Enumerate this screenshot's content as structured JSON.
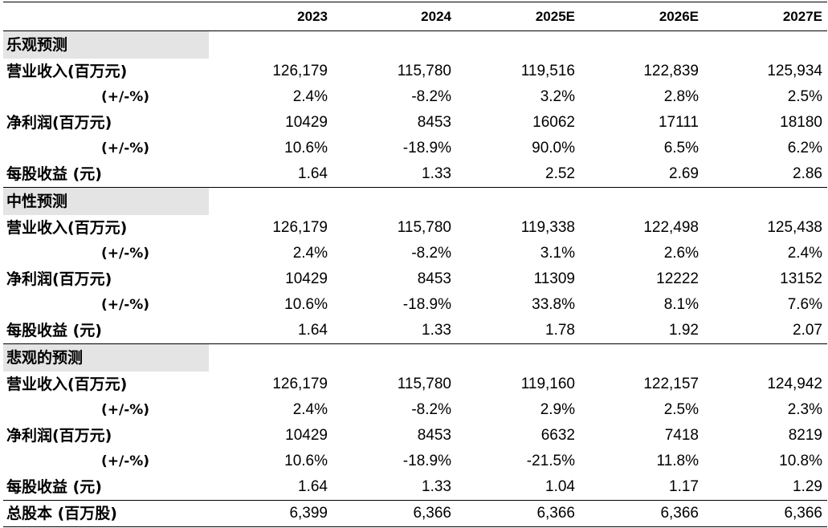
{
  "headers": [
    "",
    "2023",
    "2024",
    "2025E",
    "2026E",
    "2027E"
  ],
  "sections": [
    {
      "title": "乐观预测",
      "rows": [
        {
          "label": "营业收入(百万元)",
          "sub": false,
          "values": [
            "126,179",
            "115,780",
            "119,516",
            "122,839",
            "125,934"
          ]
        },
        {
          "label": "(+/-%)",
          "sub": true,
          "values": [
            "2.4%",
            "-8.2%",
            "3.2%",
            "2.8%",
            "2.5%"
          ]
        },
        {
          "label": "净利润(百万元)",
          "sub": false,
          "values": [
            "10429",
            "8453",
            "16062",
            "17111",
            "18180"
          ]
        },
        {
          "label": "(+/-%)",
          "sub": true,
          "values": [
            "10.6%",
            "-18.9%",
            "90.0%",
            "6.5%",
            "6.2%"
          ]
        },
        {
          "label": "每股收益 (元)",
          "sub": false,
          "values": [
            "1.64",
            "1.33",
            "2.52",
            "2.69",
            "2.86"
          ]
        }
      ]
    },
    {
      "title": "中性预测",
      "rows": [
        {
          "label": "营业收入(百万元)",
          "sub": false,
          "values": [
            "126,179",
            "115,780",
            "119,338",
            "122,498",
            "125,438"
          ]
        },
        {
          "label": "(+/-%)",
          "sub": true,
          "values": [
            "2.4%",
            "-8.2%",
            "3.1%",
            "2.6%",
            "2.4%"
          ]
        },
        {
          "label": "净利润(百万元)",
          "sub": false,
          "values": [
            "10429",
            "8453",
            "11309",
            "12222",
            "13152"
          ]
        },
        {
          "label": "(+/-%)",
          "sub": true,
          "values": [
            "10.6%",
            "-18.9%",
            "33.8%",
            "8.1%",
            "7.6%"
          ]
        },
        {
          "label": "每股收益 (元)",
          "sub": false,
          "values": [
            "1.64",
            "1.33",
            "1.78",
            "1.92",
            "2.07"
          ]
        }
      ]
    },
    {
      "title": "悲观的预测",
      "rows": [
        {
          "label": "营业收入(百万元)",
          "sub": false,
          "values": [
            "126,179",
            "115,780",
            "119,160",
            "122,157",
            "124,942"
          ]
        },
        {
          "label": "(+/-%)",
          "sub": true,
          "values": [
            "2.4%",
            "-8.2%",
            "2.9%",
            "2.5%",
            "2.3%"
          ]
        },
        {
          "label": "净利润(百万元)",
          "sub": false,
          "values": [
            "10429",
            "8453",
            "6632",
            "7418",
            "8219"
          ]
        },
        {
          "label": "(+/-%)",
          "sub": true,
          "values": [
            "10.6%",
            "-18.9%",
            "-21.5%",
            "11.8%",
            "10.8%"
          ]
        },
        {
          "label": "每股收益 (元)",
          "sub": false,
          "values": [
            "1.64",
            "1.33",
            "1.04",
            "1.17",
            "1.29"
          ]
        }
      ]
    }
  ],
  "total": {
    "label": "总股本 (百万股)",
    "values": [
      "6,399",
      "6,366",
      "6,366",
      "6,366",
      "6,366"
    ]
  }
}
